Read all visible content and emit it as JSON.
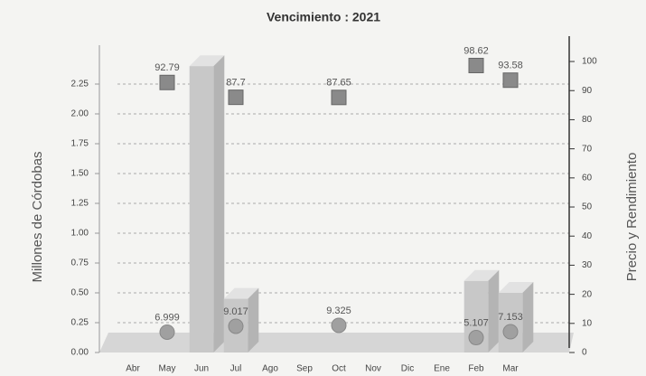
{
  "chart_data": {
    "type": "bar",
    "title": "Vencimiento : 2021",
    "ylabel": "Millones de Córdobas",
    "y2label": "Precio y Rendimiento",
    "categories": [
      "Abr",
      "May",
      "Jun",
      "Jul",
      "Ago",
      "Sep",
      "Oct",
      "Nov",
      "Dic",
      "Ene",
      "Feb",
      "Mar"
    ],
    "series": [
      {
        "type": "bar",
        "color": "#c8c8c8",
        "values": [
          null,
          null,
          2.4,
          0.45,
          null,
          null,
          null,
          null,
          null,
          null,
          0.6,
          0.5
        ]
      },
      {
        "type": "square",
        "axis": "y2",
        "color": "#8a8a8a",
        "values": [
          null,
          92.79,
          null,
          87.7,
          null,
          null,
          87.65,
          null,
          null,
          null,
          98.62,
          93.58
        ]
      },
      {
        "type": "circle",
        "axis": "y2",
        "color": "#a0a0a0",
        "values": [
          null,
          6.999,
          null,
          9.017,
          null,
          null,
          9.325,
          null,
          null,
          null,
          5.107,
          7.153
        ]
      }
    ],
    "ylim": [
      0,
      2.5
    ],
    "yticks": [
      {
        "value": 0,
        "label": "0.00"
      },
      {
        "value": 0.25,
        "label": "0.25"
      },
      {
        "value": 0.5,
        "label": "0.50"
      },
      {
        "value": 0.75,
        "label": "0.75"
      },
      {
        "value": 1,
        "label": "1.00"
      },
      {
        "value": 1.25,
        "label": "1.25"
      },
      {
        "value": 1.5,
        "label": "1.50"
      },
      {
        "value": 1.75,
        "label": "1.75"
      },
      {
        "value": 2,
        "label": "2.00"
      },
      {
        "value": 2.25,
        "label": "2.25"
      }
    ],
    "y2lim": [
      0,
      102.5
    ],
    "y2ticks": [
      0,
      10,
      20,
      30,
      40,
      50,
      60,
      70,
      80,
      90,
      100
    ],
    "grid": true
  }
}
